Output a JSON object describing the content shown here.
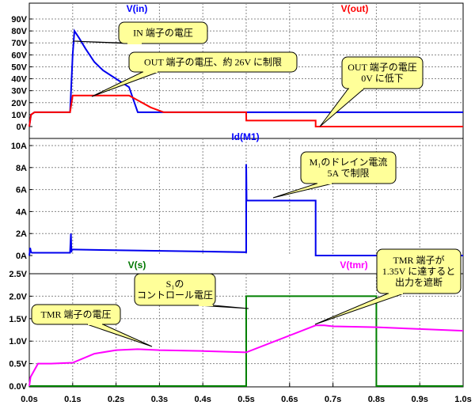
{
  "chart_data": [
    {
      "type": "line",
      "panel": "top",
      "trace_titles": [
        "V(in)",
        "V(out)"
      ],
      "trace_title_colors": [
        "#0000ff",
        "#ff0000"
      ],
      "ylim": [
        0,
        90
      ],
      "yticks": [
        "0V",
        "10V",
        "20V",
        "30V",
        "40V",
        "50V",
        "60V",
        "70V",
        "80V",
        "90V"
      ],
      "series": [
        {
          "name": "V(in)",
          "color": "#0000ee",
          "x": [
            0,
            0.004,
            0.012,
            0.06,
            0.094,
            0.1,
            0.104,
            0.115,
            0.13,
            0.15,
            0.17,
            0.2,
            0.23,
            0.25,
            1.0
          ],
          "y": [
            0,
            10,
            12,
            12,
            12,
            60,
            80,
            74,
            65,
            54,
            47,
            40,
            33,
            12,
            12
          ]
        },
        {
          "name": "V(out)",
          "color": "#ff0000",
          "x": [
            0,
            0.004,
            0.012,
            0.094,
            0.1,
            0.23,
            0.28,
            0.31,
            0.5,
            0.5001,
            0.66,
            0.66,
            1.0
          ],
          "y": [
            0,
            10,
            12,
            12,
            26,
            26,
            16,
            12,
            12,
            5,
            5,
            0,
            0
          ]
        }
      ],
      "callouts": [
        {
          "lines": [
            "IN 端子の電圧"
          ]
        },
        {
          "lines": [
            "OUT 端子の電圧、約 26V に制限"
          ]
        },
        {
          "lines": [
            "OUT 端子の電圧",
            "0V に低下"
          ]
        }
      ]
    },
    {
      "type": "line",
      "panel": "middle",
      "trace_titles": [
        "Id(M1)"
      ],
      "trace_title_colors": [
        "#0000ff"
      ],
      "ylim": [
        0,
        10
      ],
      "yticks": [
        "0A",
        "2A",
        "4A",
        "6A",
        "8A",
        "10A"
      ],
      "series": [
        {
          "name": "Id(M1)",
          "color": "#0000ee",
          "x": [
            0,
            0.002,
            0.004,
            0.006,
            0.02,
            0.094,
            0.096,
            0.097,
            0.098,
            0.1,
            0.5,
            0.5,
            0.501,
            0.502,
            0.502,
            0.66,
            0.66,
            1.0
          ],
          "y": [
            0,
            0.7,
            0.3,
            0.25,
            0.25,
            0.25,
            2.0,
            0.3,
            0.55,
            0.55,
            0.3,
            8.3,
            5.0,
            5.0,
            5.0,
            5.0,
            0,
            0
          ]
        }
      ],
      "callouts": [
        {
          "lines": [
            "M₁のドレイン電流",
            "5A で制限"
          ]
        }
      ]
    },
    {
      "type": "line",
      "panel": "bottom",
      "trace_titles": [
        "V(s)",
        "V(tmr)"
      ],
      "trace_title_colors": [
        "#007700",
        "#ff00ff"
      ],
      "ylim": [
        0,
        2.5
      ],
      "yticks": [
        "0.0V",
        "0.5V",
        "1.0V",
        "1.5V",
        "2.0V",
        "2.5V"
      ],
      "xlim": [
        0,
        1.0
      ],
      "xticks": [
        "0.0s",
        "0.1s",
        "0.2s",
        "0.3s",
        "0.4s",
        "0.5s",
        "0.6s",
        "0.7s",
        "0.8s",
        "0.9s",
        "1.0s"
      ],
      "series": [
        {
          "name": "V(s)",
          "color": "#008000",
          "x": [
            0,
            0.5,
            0.5,
            0.8,
            0.8,
            1.0
          ],
          "y": [
            0,
            0,
            2.0,
            2.0,
            0,
            0
          ]
        },
        {
          "name": "V(tmr)",
          "color": "#ff00ff",
          "x": [
            0,
            0.003,
            0.02,
            0.05,
            0.1,
            0.12,
            0.15,
            0.2,
            0.25,
            0.3,
            0.4,
            0.5,
            0.66,
            0.68,
            0.7,
            0.8,
            0.9,
            1.0
          ],
          "y": [
            0,
            0.2,
            0.5,
            0.5,
            0.52,
            0.6,
            0.72,
            0.8,
            0.82,
            0.8,
            0.78,
            0.75,
            1.35,
            1.35,
            1.33,
            1.31,
            1.27,
            1.23
          ]
        }
      ],
      "callouts": [
        {
          "lines": [
            "TMR 端子の電圧"
          ]
        },
        {
          "lines": [
            "S₁の",
            "コントロール電圧"
          ]
        },
        {
          "lines": [
            "TMR 端子が",
            "1.35V に達すると",
            "出力を遮断"
          ]
        }
      ]
    }
  ]
}
